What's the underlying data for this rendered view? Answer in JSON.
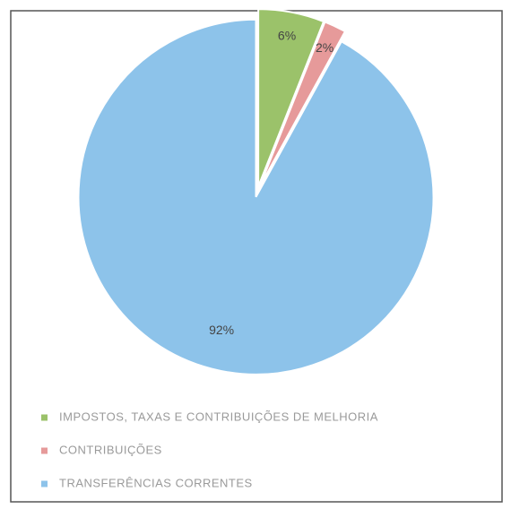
{
  "chart_data": {
    "type": "pie",
    "categories": [
      "IMPOSTOS, TAXAS E CONTRIBUIÇÕES DE MELHORIA",
      "CONTRIBUIÇÕES",
      "TRANSFERÊNCIAS CORRENTES"
    ],
    "values": [
      6,
      2,
      92
    ],
    "value_labels": [
      "6%",
      "2%",
      "92%"
    ],
    "colors": [
      "#9bc26a",
      "#e69a9a",
      "#8dc3ea"
    ],
    "legend": "bottom"
  }
}
